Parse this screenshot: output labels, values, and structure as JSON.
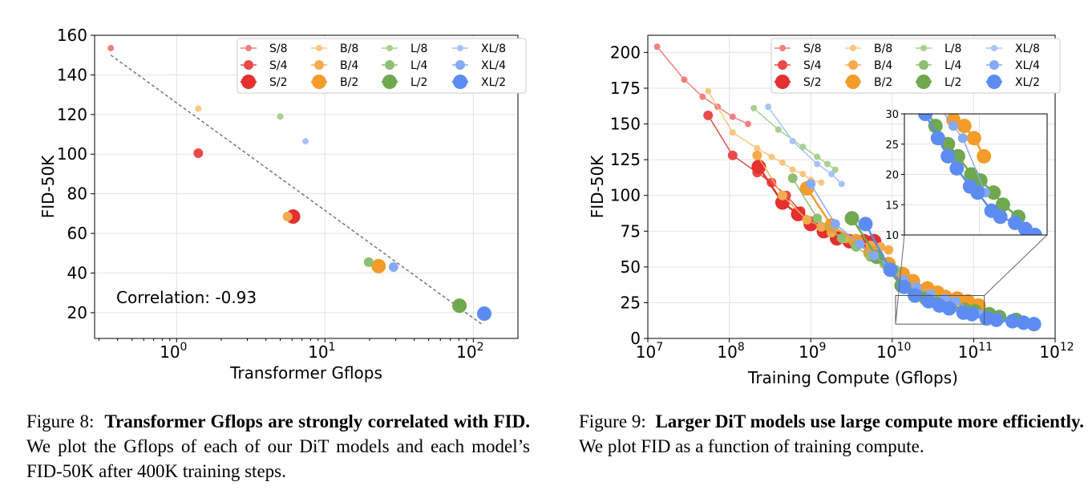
{
  "chart_data": [
    {
      "type": "scatter",
      "xlabel": "Transformer Gflops",
      "ylabel": "FID-50K",
      "xscale": "log",
      "xlim": [
        0.28,
        200
      ],
      "ylim": [
        7,
        160
      ],
      "yticks": [
        20,
        40,
        60,
        80,
        100,
        120,
        140,
        160
      ],
      "xtick_bases": [
        "10",
        "10",
        "10"
      ],
      "xtick_exps": [
        "0",
        "1",
        "2"
      ],
      "annotation": "Correlation: -0.93",
      "fit_line": {
        "x": [
          0.36,
          115
        ],
        "y": [
          150,
          14
        ]
      },
      "legend": {
        "placement": "top-right",
        "columns": [
          [
            "S/8",
            "S/4",
            "S/2"
          ],
          [
            "B/8",
            "B/4",
            "B/2"
          ],
          [
            "L/8",
            "L/4",
            "L/2"
          ],
          [
            "XL/8",
            "XL/4",
            "XL/2"
          ]
        ]
      },
      "points": [
        {
          "name": "S/8",
          "x": 0.36,
          "y": 153.5
        },
        {
          "name": "S/4",
          "x": 1.4,
          "y": 100.5
        },
        {
          "name": "S/2",
          "x": 6.1,
          "y": 68.5
        },
        {
          "name": "B/8",
          "x": 1.4,
          "y": 123
        },
        {
          "name": "B/4",
          "x": 5.6,
          "y": 68.5
        },
        {
          "name": "B/2",
          "x": 23,
          "y": 43.5
        },
        {
          "name": "L/8",
          "x": 5.0,
          "y": 119
        },
        {
          "name": "L/4",
          "x": 19.7,
          "y": 45.5
        },
        {
          "name": "L/2",
          "x": 80.7,
          "y": 23.5
        },
        {
          "name": "XL/8",
          "x": 7.4,
          "y": 106.5
        },
        {
          "name": "XL/4",
          "x": 29,
          "y": 43
        },
        {
          "name": "XL/2",
          "x": 118.6,
          "y": 19.5
        }
      ]
    },
    {
      "type": "line",
      "xlabel": "Training Compute (Gflops)",
      "ylabel": "FID-50K",
      "xscale": "log",
      "xlim": [
        10000000,
        1000000000000
      ],
      "ylim": [
        0,
        212
      ],
      "yticks": [
        0,
        25,
        50,
        75,
        100,
        125,
        150,
        175,
        200
      ],
      "xtick_bases": [
        "10",
        "10",
        "10",
        "10",
        "10",
        "10"
      ],
      "xtick_exps": [
        "7",
        "8",
        "9",
        "10",
        "11",
        "12"
      ],
      "legend": {
        "placement": "top-right",
        "columns": [
          [
            "S/8",
            "S/4",
            "S/2"
          ],
          [
            "B/8",
            "B/4",
            "B/2"
          ],
          [
            "L/8",
            "L/4",
            "L/2"
          ],
          [
            "XL/8",
            "XL/4",
            "XL/2"
          ]
        ]
      },
      "inset": {
        "xlim": [
          10000000000,
          800000000000
        ],
        "ylim": [
          10,
          30
        ],
        "yticks": [
          10,
          15,
          20,
          25,
          30
        ]
      },
      "series": [
        {
          "name": "S/8",
          "x": [
            13000000,
            28000000,
            47000000,
            72000000,
            110000000,
            170000000
          ],
          "y": [
            204,
            181,
            169,
            162,
            155,
            150
          ]
        },
        {
          "name": "S/4",
          "x": [
            55000000,
            110000000,
            220000000,
            330000000,
            500000000,
            750000000,
            1000000000,
            1500000000
          ],
          "y": [
            156,
            128,
            116,
            109,
            100,
            89,
            82,
            75
          ]
        },
        {
          "name": "S/2",
          "x": [
            230000000,
            450000000,
            700000000,
            1000000000,
            1450000000,
            2100000000,
            3000000000,
            4500000000,
            6000000000
          ],
          "y": [
            120,
            95,
            87,
            80,
            75,
            70,
            68,
            68,
            68
          ]
        },
        {
          "name": "B/8",
          "x": [
            55000000,
            110000000,
            220000000,
            330000000,
            450000000,
            600000000,
            800000000,
            1000000000,
            1350000000
          ],
          "y": [
            173,
            144,
            133,
            127,
            123,
            118,
            115,
            111,
            109
          ]
        },
        {
          "name": "B/4",
          "x": [
            220000000,
            450000000,
            900000000,
            1350000000,
            1800000000,
            2700000000,
            3600000000,
            5400000000,
            7200000000,
            9000000000
          ],
          "y": [
            128,
            100,
            83,
            78,
            74,
            70,
            68,
            65,
            64,
            62
          ]
        },
        {
          "name": "B/2",
          "x": [
            900000000,
            1800000000,
            3600000000,
            5400000000,
            9000000000,
            13500000000,
            18000000000,
            27000000000,
            36000000000,
            45000000000,
            63000000000,
            85000000000,
            115000000000
          ],
          "y": [
            105,
            79,
            68,
            60,
            52,
            45,
            40,
            35,
            32,
            29,
            28,
            26,
            23
          ]
        },
        {
          "name": "L/8",
          "x": [
            200000000,
            400000000,
            800000000,
            1200000000,
            1600000000,
            2000000000
          ],
          "y": [
            161,
            146,
            134,
            127,
            122,
            118
          ]
        },
        {
          "name": "L/4",
          "x": [
            600000000,
            1200000000,
            2400000000,
            3600000000,
            5400000000,
            8000000000,
            11000000000
          ],
          "y": [
            112,
            84,
            70,
            64,
            57,
            52,
            48
          ]
        },
        {
          "name": "L/2",
          "x": [
            3200000000,
            6500000000,
            13000000000,
            19000000000,
            26000000000,
            38000000000,
            52000000000,
            78000000000,
            103000000000,
            155000000000,
            206000000000,
            330000000000
          ],
          "y": [
            84,
            57,
            37,
            31,
            28,
            25,
            23,
            20,
            19,
            17,
            15,
            13
          ]
        },
        {
          "name": "XL/8",
          "x": [
            300000000,
            600000000,
            1200000000,
            1800000000,
            2400000000
          ],
          "y": [
            162,
            138,
            122,
            115,
            108
          ]
        },
        {
          "name": "XL/4",
          "x": [
            1000000000,
            2000000000,
            4000000000,
            6000000000,
            9000000000,
            14000000000,
            20000000000,
            30000000000,
            45000000000,
            60000000000,
            120000000000
          ],
          "y": [
            108,
            80,
            66,
            58,
            50,
            41,
            36,
            31,
            28,
            26,
            17
          ]
        },
        {
          "name": "XL/2",
          "x": [
            4700000000,
            9500000000,
            14000000000,
            19000000000,
            28000000000,
            38000000000,
            50000000000,
            75000000000,
            95000000000,
            145000000000,
            190000000000,
            300000000000,
            410000000000,
            550000000000
          ],
          "y": [
            80,
            48,
            36,
            30,
            26,
            23,
            21,
            18,
            17,
            14,
            13,
            12,
            11,
            10
          ]
        }
      ]
    }
  ],
  "colors": {
    "S/8": "#f08080",
    "S/4": "#ea4a4a",
    "S/2": "#e53030",
    "B/8": "#f7c77f",
    "B/4": "#f4ab50",
    "B/2": "#f39c2a",
    "L/8": "#a9cf92",
    "L/4": "#8fbf72",
    "L/2": "#6fa84e",
    "XL/8": "#a7c3f7",
    "XL/4": "#86a9f5",
    "XL/2": "#5c8cf2"
  },
  "marker_sizes": {
    "8": 4,
    "4": 6,
    "2": 9
  },
  "captions": {
    "fig8_label": "Figure 8:",
    "fig8_bold": "Transformer Gflops are strongly correlated with FID.",
    "fig8_text": " We plot the Gflops of each of our DiT models and each model’s FID-50K after 400K training steps.",
    "fig9_label": "Figure 9:",
    "fig9_bold": "Larger DiT models use large compute more efficiently.",
    "fig9_text": " We plot FID as a function of training compute."
  }
}
